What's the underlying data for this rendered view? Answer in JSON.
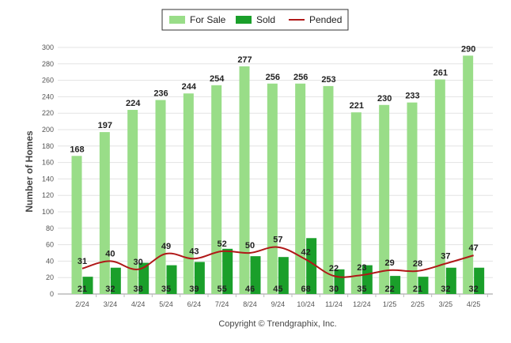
{
  "chart_data": {
    "type": "bar",
    "ylabel": "Number of Homes",
    "xlabel": "",
    "ylim": [
      0,
      300
    ],
    "y_ticks": [
      0,
      20,
      40,
      60,
      80,
      100,
      120,
      140,
      160,
      180,
      200,
      220,
      240,
      260,
      280,
      300
    ],
    "grid": true,
    "legend_position": "top-center",
    "categories": [
      "2/24",
      "3/24",
      "4/24",
      "5/24",
      "6/24",
      "7/24",
      "8/24",
      "9/24",
      "10/24",
      "11/24",
      "12/24",
      "1/25",
      "2/25",
      "3/25",
      "4/25"
    ],
    "series": [
      {
        "name": "For Sale",
        "kind": "bar",
        "color": "#99dd88",
        "values": [
          168,
          197,
          224,
          236,
          244,
          254,
          277,
          256,
          256,
          253,
          221,
          230,
          233,
          261,
          290
        ]
      },
      {
        "name": "Sold",
        "kind": "bar",
        "color": "#1a9f2a",
        "values": [
          21,
          32,
          38,
          35,
          39,
          55,
          46,
          45,
          68,
          30,
          35,
          22,
          21,
          32,
          32
        ]
      },
      {
        "name": "Pended",
        "kind": "line",
        "color": "#b01818",
        "values": [
          31,
          40,
          30,
          49,
          43,
          52,
          50,
          57,
          42,
          22,
          23,
          29,
          28,
          37,
          47
        ]
      }
    ]
  },
  "footer": {
    "copyright": "Copyright © Trendgraphix, Inc."
  }
}
